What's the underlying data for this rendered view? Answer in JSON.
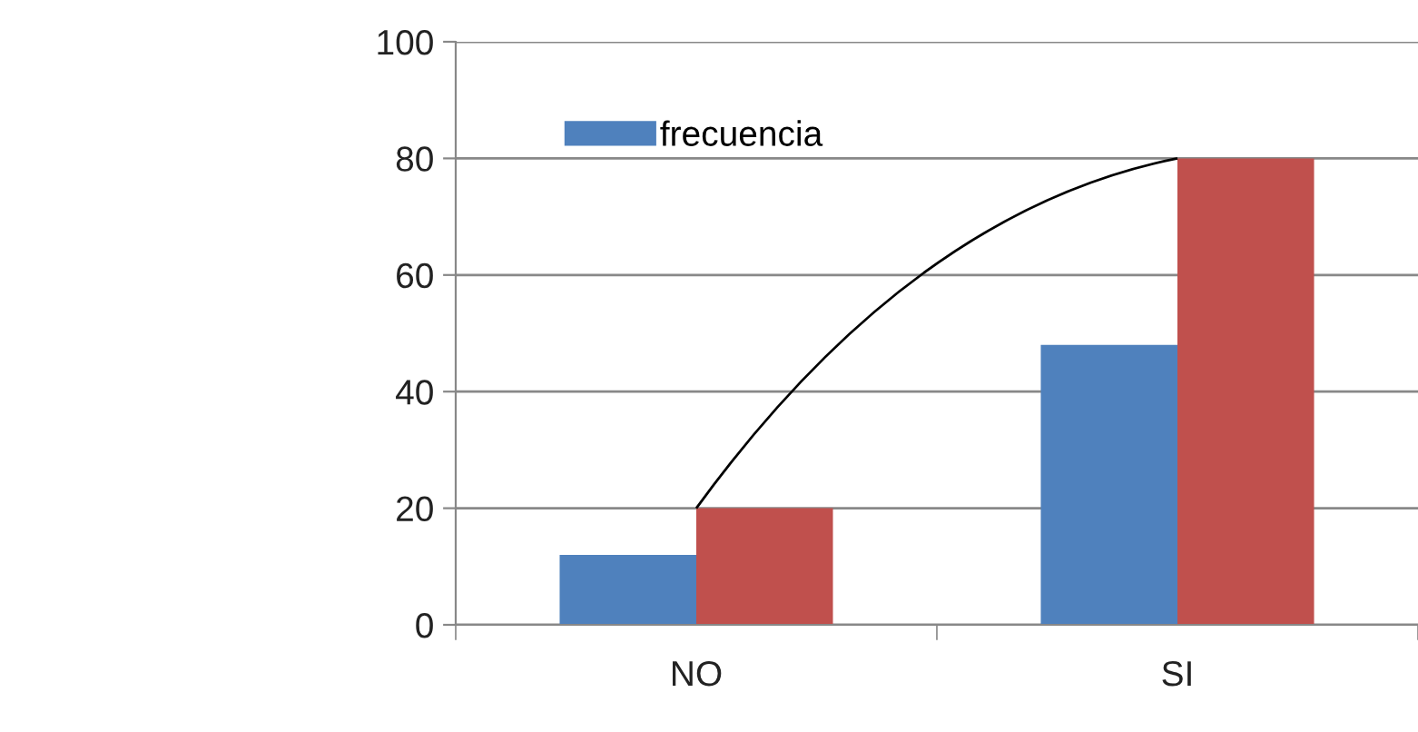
{
  "chart_data": {
    "type": "bar",
    "categories": [
      "NO",
      "SI"
    ],
    "series": [
      {
        "name": "frecuencia",
        "color": "#4f81bd",
        "values": [
          12,
          48
        ]
      },
      {
        "color": "#c0504d",
        "values": [
          20,
          80
        ]
      },
      {
        "type": "line",
        "color": "#000000",
        "values": [
          20,
          80
        ]
      }
    ],
    "ylim": [
      0,
      100
    ],
    "yticks": [
      0,
      20,
      40,
      60,
      80,
      100
    ],
    "grid": "y",
    "legend": "top left",
    "marker": "none"
  }
}
